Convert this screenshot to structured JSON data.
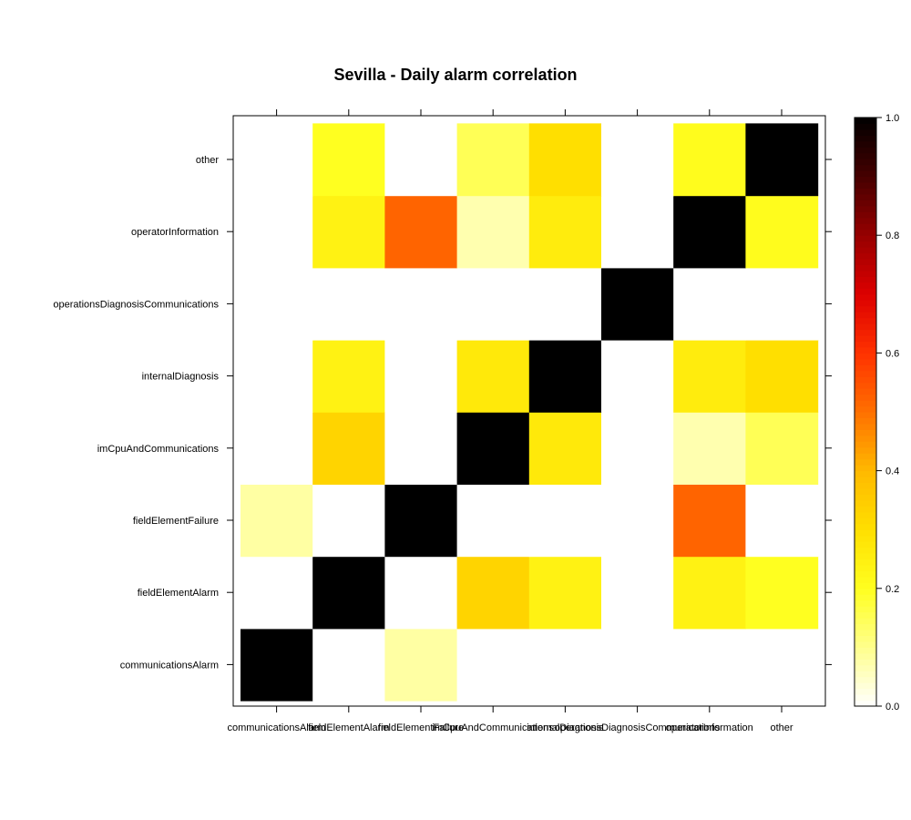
{
  "chart_data": {
    "type": "heatmap",
    "title": "Sevilla - Daily alarm correlation",
    "categories": [
      "communicationsAlarm",
      "fieldElementAlarm",
      "fieldElementFailure",
      "imCpuAndCommunications",
      "internalDiagnosis",
      "operationsDiagnosisCommunications",
      "operatorInformation",
      "other"
    ],
    "values": [
      [
        1.0,
        0.0,
        0.08,
        0.0,
        0.0,
        0.0,
        0.0,
        0.0
      ],
      [
        0.0,
        1.0,
        0.0,
        0.33,
        0.24,
        0.0,
        0.24,
        0.2
      ],
      [
        0.08,
        0.0,
        1.0,
        0.0,
        0.0,
        0.0,
        0.52,
        0.0
      ],
      [
        0.0,
        0.33,
        0.0,
        1.0,
        0.27,
        0.0,
        0.07,
        0.15
      ],
      [
        0.0,
        0.24,
        0.0,
        0.27,
        1.0,
        0.0,
        0.26,
        0.3
      ],
      [
        0.0,
        0.0,
        0.0,
        0.0,
        0.0,
        1.0,
        0.0,
        0.0
      ],
      [
        0.0,
        0.24,
        0.52,
        0.07,
        0.26,
        0.0,
        1.0,
        0.21
      ],
      [
        0.0,
        0.2,
        0.0,
        0.15,
        0.3,
        0.0,
        0.21,
        1.0
      ]
    ],
    "colorbar": {
      "range": [
        0.0,
        1.0
      ],
      "ticks": [
        "0.0",
        "0.2",
        "0.4",
        "0.6",
        "0.8",
        "1.0"
      ],
      "palette": "heat"
    },
    "grid": false
  }
}
